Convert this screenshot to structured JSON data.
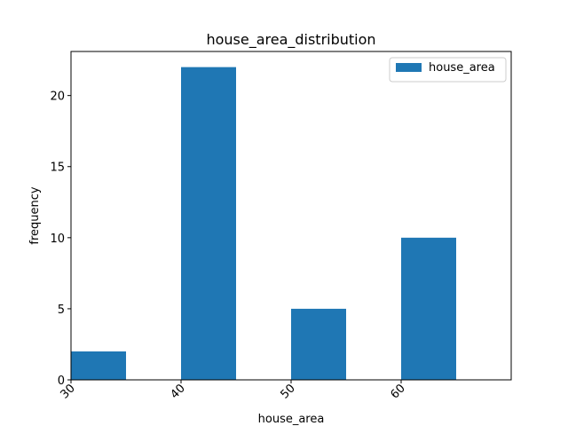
{
  "chart_data": {
    "type": "bar",
    "title": "house_area_distribution",
    "xlabel": "house_area",
    "ylabel": "frequency",
    "xlim": [
      30,
      70
    ],
    "ylim": [
      0,
      23.1
    ],
    "x_ticks": [
      30,
      40,
      50,
      60
    ],
    "y_ticks": [
      0,
      5,
      10,
      15,
      20
    ],
    "bar_width": 5,
    "bars": [
      {
        "x": 30,
        "value": 2
      },
      {
        "x": 40,
        "value": 22
      },
      {
        "x": 50,
        "value": 5
      },
      {
        "x": 60,
        "value": 10
      }
    ],
    "legend": {
      "label": "house_area",
      "position": "top-right"
    },
    "grid": false,
    "colors": {
      "bar": "#1f77b4"
    }
  }
}
